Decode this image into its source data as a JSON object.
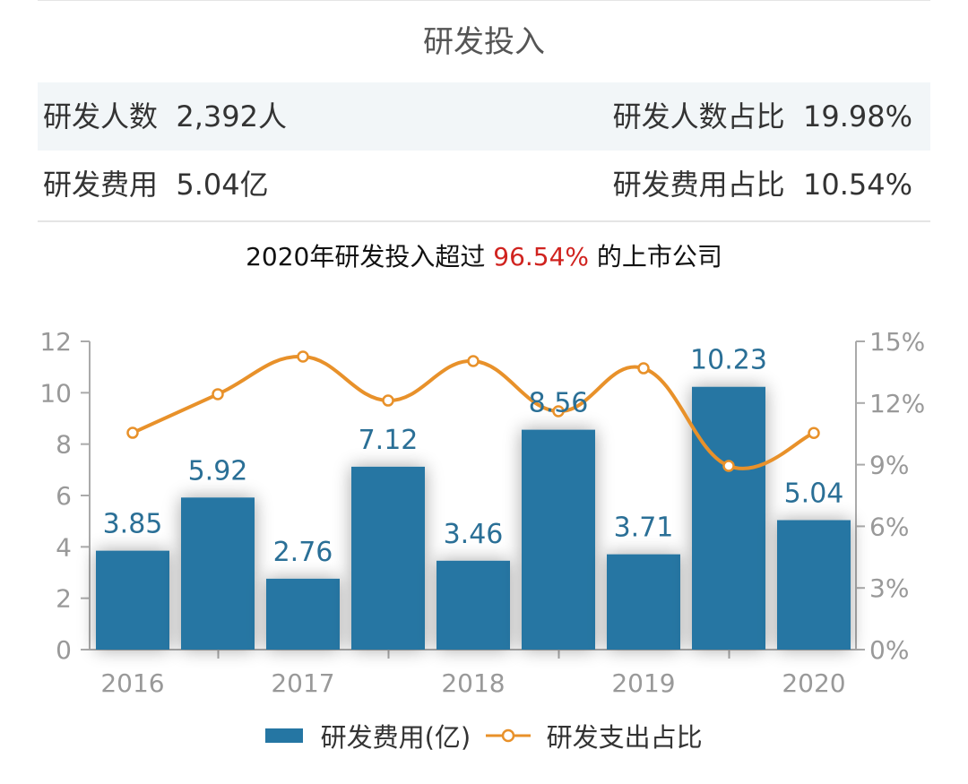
{
  "header": {
    "title": "研发投入"
  },
  "stats": [
    {
      "label": "研发人数",
      "value": "2,392人",
      "ratio_label": "研发人数占比",
      "ratio_value": "19.98%"
    },
    {
      "label": "研发费用",
      "value": "5.04亿",
      "ratio_label": "研发费用占比",
      "ratio_value": "10.54%"
    }
  ],
  "summary": {
    "prefix": "2020年研发投入超过 ",
    "highlight": "96.54%",
    "suffix": " 的上市公司"
  },
  "colors": {
    "bar": "#2576a3",
    "line": "#e8912a",
    "highlight": "#d0231f"
  },
  "chart_data": {
    "type": "bar+line",
    "x_tick_labels": [
      "2016",
      "2017",
      "2018",
      "2019",
      "2020"
    ],
    "series": [
      {
        "name": "研发费用(亿)",
        "type": "bar",
        "axis": "left",
        "values": [
          3.85,
          5.92,
          2.76,
          7.12,
          3.46,
          8.56,
          3.71,
          10.23,
          5.04
        ],
        "labels": [
          "3.85",
          "5.92",
          "2.76",
          "7.12",
          "3.46",
          "8.56",
          "3.71",
          "10.23",
          "5.04"
        ]
      },
      {
        "name": "研发支出占比",
        "type": "line",
        "axis": "right",
        "values": [
          10.55,
          12.43,
          14.26,
          12.12,
          14.04,
          11.6,
          13.69,
          8.94,
          10.54
        ]
      }
    ],
    "y_left": {
      "ylim": [
        0,
        12
      ],
      "ticks": [
        "0",
        "2",
        "4",
        "6",
        "8",
        "10",
        "12"
      ]
    },
    "y_right": {
      "ylim": [
        0,
        15
      ],
      "ticks": [
        "0%",
        "3%",
        "6%",
        "9%",
        "12%",
        "15%"
      ]
    },
    "legend_placement": "bottom",
    "grid": false
  }
}
